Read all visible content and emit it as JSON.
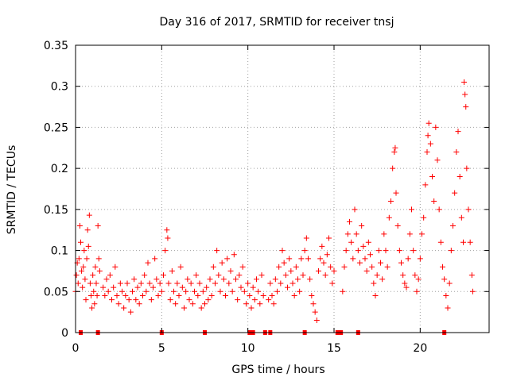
{
  "chart_data": {
    "type": "scatter",
    "title": "Day 316 of 2017, SRMTID for receiver tnsj",
    "xlabel": "GPS time / hours",
    "ylabel": "SRMTID / TECUs",
    "xlim": [
      0,
      24
    ],
    "ylim": [
      0,
      0.35
    ],
    "xticks": [
      0,
      5,
      10,
      15,
      20
    ],
    "xtick_labels": [
      "0",
      "5",
      "10",
      "15",
      "20"
    ],
    "yticks": [
      0,
      0.05,
      0.1,
      0.15,
      0.2,
      0.25,
      0.3,
      0.35
    ],
    "ytick_labels": [
      "0",
      "0.05",
      "0.1",
      "0.15",
      "0.2",
      "0.25",
      "0.3",
      "0.35"
    ],
    "grid": true,
    "series": [
      {
        "name": "SRMTID",
        "marker": "plus",
        "color": "#ff0000",
        "points": [
          [
            0.0,
            0.05
          ],
          [
            0.05,
            0.07
          ],
          [
            0.1,
            0.085
          ],
          [
            0.15,
            0.06
          ],
          [
            0.2,
            0.09
          ],
          [
            0.25,
            0.13
          ],
          [
            0.3,
            0.11
          ],
          [
            0.35,
            0.075
          ],
          [
            0.4,
            0.055
          ],
          [
            0.45,
            0.08
          ],
          [
            0.5,
            0.1
          ],
          [
            0.55,
            0.065
          ],
          [
            0.6,
            0.04
          ],
          [
            0.65,
            0.09
          ],
          [
            0.7,
            0.125
          ],
          [
            0.75,
            0.105
          ],
          [
            0.8,
            0.143
          ],
          [
            0.85,
            0.06
          ],
          [
            0.9,
            0.045
          ],
          [
            0.95,
            0.03
          ],
          [
            1.0,
            0.07
          ],
          [
            1.05,
            0.05
          ],
          [
            1.1,
            0.035
          ],
          [
            1.15,
            0.08
          ],
          [
            1.2,
            0.06
          ],
          [
            1.25,
            0.045
          ],
          [
            1.3,
            0.13
          ],
          [
            1.35,
            0.09
          ],
          [
            1.4,
            0.075
          ],
          [
            1.6,
            0.055
          ],
          [
            1.7,
            0.045
          ],
          [
            1.8,
            0.065
          ],
          [
            1.9,
            0.05
          ],
          [
            2.0,
            0.07
          ],
          [
            2.1,
            0.04
          ],
          [
            2.2,
            0.055
          ],
          [
            2.3,
            0.08
          ],
          [
            2.4,
            0.045
          ],
          [
            2.5,
            0.035
          ],
          [
            2.6,
            0.06
          ],
          [
            2.7,
            0.05
          ],
          [
            2.8,
            0.03
          ],
          [
            2.9,
            0.045
          ],
          [
            3.0,
            0.06
          ],
          [
            3.1,
            0.04
          ],
          [
            3.2,
            0.025
          ],
          [
            3.3,
            0.05
          ],
          [
            3.4,
            0.065
          ],
          [
            3.5,
            0.04
          ],
          [
            3.6,
            0.055
          ],
          [
            3.7,
            0.035
          ],
          [
            3.8,
            0.06
          ],
          [
            3.9,
            0.045
          ],
          [
            4.0,
            0.07
          ],
          [
            4.1,
            0.05
          ],
          [
            4.2,
            0.085
          ],
          [
            4.3,
            0.06
          ],
          [
            4.4,
            0.04
          ],
          [
            4.5,
            0.055
          ],
          [
            4.6,
            0.09
          ],
          [
            4.7,
            0.065
          ],
          [
            4.8,
            0.045
          ],
          [
            4.9,
            0.06
          ],
          [
            5.0,
            0.05
          ],
          [
            5.1,
            0.07
          ],
          [
            5.2,
            0.1
          ],
          [
            5.3,
            0.125
          ],
          [
            5.35,
            0.115
          ],
          [
            5.4,
            0.06
          ],
          [
            5.5,
            0.04
          ],
          [
            5.6,
            0.075
          ],
          [
            5.7,
            0.05
          ],
          [
            5.8,
            0.035
          ],
          [
            5.9,
            0.06
          ],
          [
            6.0,
            0.045
          ],
          [
            6.1,
            0.08
          ],
          [
            6.2,
            0.055
          ],
          [
            6.3,
            0.03
          ],
          [
            6.4,
            0.05
          ],
          [
            6.5,
            0.065
          ],
          [
            6.6,
            0.04
          ],
          [
            6.7,
            0.06
          ],
          [
            6.8,
            0.035
          ],
          [
            6.9,
            0.05
          ],
          [
            7.0,
            0.07
          ],
          [
            7.1,
            0.045
          ],
          [
            7.2,
            0.06
          ],
          [
            7.3,
            0.03
          ],
          [
            7.4,
            0.05
          ],
          [
            7.5,
            0.035
          ],
          [
            7.6,
            0.055
          ],
          [
            7.7,
            0.04
          ],
          [
            7.8,
            0.065
          ],
          [
            7.9,
            0.045
          ],
          [
            8.0,
            0.08
          ],
          [
            8.1,
            0.06
          ],
          [
            8.2,
            0.1
          ],
          [
            8.3,
            0.07
          ],
          [
            8.4,
            0.05
          ],
          [
            8.5,
            0.085
          ],
          [
            8.6,
            0.065
          ],
          [
            8.7,
            0.045
          ],
          [
            8.8,
            0.09
          ],
          [
            8.9,
            0.06
          ],
          [
            9.0,
            0.075
          ],
          [
            9.1,
            0.05
          ],
          [
            9.2,
            0.095
          ],
          [
            9.3,
            0.065
          ],
          [
            9.4,
            0.04
          ],
          [
            9.5,
            0.07
          ],
          [
            9.6,
            0.055
          ],
          [
            9.7,
            0.08
          ],
          [
            9.8,
            0.05
          ],
          [
            9.9,
            0.035
          ],
          [
            10.0,
            0.06
          ],
          [
            10.1,
            0.045
          ],
          [
            10.2,
            0.03
          ],
          [
            10.3,
            0.055
          ],
          [
            10.4,
            0.04
          ],
          [
            10.5,
            0.065
          ],
          [
            10.6,
            0.05
          ],
          [
            10.7,
            0.035
          ],
          [
            10.8,
            0.07
          ],
          [
            10.9,
            0.045
          ],
          [
            11.2,
            0.04
          ],
          [
            11.3,
            0.06
          ],
          [
            11.4,
            0.045
          ],
          [
            11.5,
            0.035
          ],
          [
            11.6,
            0.065
          ],
          [
            11.7,
            0.05
          ],
          [
            11.8,
            0.08
          ],
          [
            11.9,
            0.06
          ],
          [
            12.0,
            0.1
          ],
          [
            12.1,
            0.085
          ],
          [
            12.2,
            0.07
          ],
          [
            12.3,
            0.055
          ],
          [
            12.4,
            0.09
          ],
          [
            12.5,
            0.075
          ],
          [
            12.6,
            0.06
          ],
          [
            12.7,
            0.045
          ],
          [
            12.8,
            0.08
          ],
          [
            12.9,
            0.065
          ],
          [
            13.0,
            0.05
          ],
          [
            13.1,
            0.09
          ],
          [
            13.2,
            0.07
          ],
          [
            13.3,
            0.1
          ],
          [
            13.4,
            0.115
          ],
          [
            13.5,
            0.09
          ],
          [
            13.6,
            0.065
          ],
          [
            13.7,
            0.045
          ],
          [
            13.8,
            0.035
          ],
          [
            13.9,
            0.025
          ],
          [
            14.0,
            0.015
          ],
          [
            14.1,
            0.075
          ],
          [
            14.2,
            0.09
          ],
          [
            14.3,
            0.105
          ],
          [
            14.4,
            0.085
          ],
          [
            14.5,
            0.07
          ],
          [
            14.6,
            0.095
          ],
          [
            14.7,
            0.115
          ],
          [
            14.8,
            0.08
          ],
          [
            14.9,
            0.06
          ],
          [
            15.0,
            0.075
          ],
          [
            15.5,
            0.05
          ],
          [
            15.6,
            0.08
          ],
          [
            15.7,
            0.1
          ],
          [
            15.8,
            0.12
          ],
          [
            15.9,
            0.135
          ],
          [
            16.0,
            0.11
          ],
          [
            16.1,
            0.09
          ],
          [
            16.2,
            0.15
          ],
          [
            16.3,
            0.12
          ],
          [
            16.4,
            0.1
          ],
          [
            16.5,
            0.085
          ],
          [
            16.6,
            0.13
          ],
          [
            16.7,
            0.105
          ],
          [
            16.8,
            0.09
          ],
          [
            16.9,
            0.075
          ],
          [
            17.0,
            0.11
          ],
          [
            17.1,
            0.095
          ],
          [
            17.2,
            0.08
          ],
          [
            17.3,
            0.06
          ],
          [
            17.4,
            0.045
          ],
          [
            17.5,
            0.07
          ],
          [
            17.6,
            0.1
          ],
          [
            17.7,
            0.085
          ],
          [
            17.8,
            0.065
          ],
          [
            17.9,
            0.12
          ],
          [
            18.0,
            0.1
          ],
          [
            18.1,
            0.08
          ],
          [
            18.2,
            0.14
          ],
          [
            18.3,
            0.16
          ],
          [
            18.4,
            0.2
          ],
          [
            18.5,
            0.22
          ],
          [
            18.55,
            0.225
          ],
          [
            18.6,
            0.17
          ],
          [
            18.7,
            0.13
          ],
          [
            18.8,
            0.1
          ],
          [
            18.9,
            0.085
          ],
          [
            19.0,
            0.07
          ],
          [
            19.1,
            0.06
          ],
          [
            19.2,
            0.055
          ],
          [
            19.3,
            0.09
          ],
          [
            19.4,
            0.12
          ],
          [
            19.5,
            0.15
          ],
          [
            19.6,
            0.1
          ],
          [
            19.7,
            0.07
          ],
          [
            19.8,
            0.05
          ],
          [
            19.9,
            0.065
          ],
          [
            20.0,
            0.09
          ],
          [
            20.1,
            0.12
          ],
          [
            20.2,
            0.14
          ],
          [
            20.3,
            0.18
          ],
          [
            20.4,
            0.22
          ],
          [
            20.45,
            0.24
          ],
          [
            20.5,
            0.255
          ],
          [
            20.6,
            0.23
          ],
          [
            20.7,
            0.19
          ],
          [
            20.8,
            0.16
          ],
          [
            20.9,
            0.25
          ],
          [
            21.0,
            0.21
          ],
          [
            21.1,
            0.15
          ],
          [
            21.2,
            0.11
          ],
          [
            21.3,
            0.08
          ],
          [
            21.4,
            0.065
          ],
          [
            21.5,
            0.045
          ],
          [
            21.6,
            0.03
          ],
          [
            21.7,
            0.06
          ],
          [
            21.8,
            0.1
          ],
          [
            21.9,
            0.13
          ],
          [
            22.0,
            0.17
          ],
          [
            22.1,
            0.22
          ],
          [
            22.2,
            0.245
          ],
          [
            22.3,
            0.19
          ],
          [
            22.4,
            0.14
          ],
          [
            22.5,
            0.11
          ],
          [
            22.55,
            0.305
          ],
          [
            22.6,
            0.29
          ],
          [
            22.65,
            0.275
          ],
          [
            22.7,
            0.2
          ],
          [
            22.8,
            0.15
          ],
          [
            22.9,
            0.11
          ],
          [
            23.0,
            0.07
          ],
          [
            23.05,
            0.05
          ]
        ]
      }
    ],
    "gap_markers": {
      "color": "#ff0000",
      "x": [
        0.3,
        1.3,
        5.0,
        7.5,
        10.1,
        10.3,
        11.0,
        11.3,
        13.3,
        15.2,
        15.3,
        15.4,
        16.4,
        21.4
      ]
    }
  }
}
